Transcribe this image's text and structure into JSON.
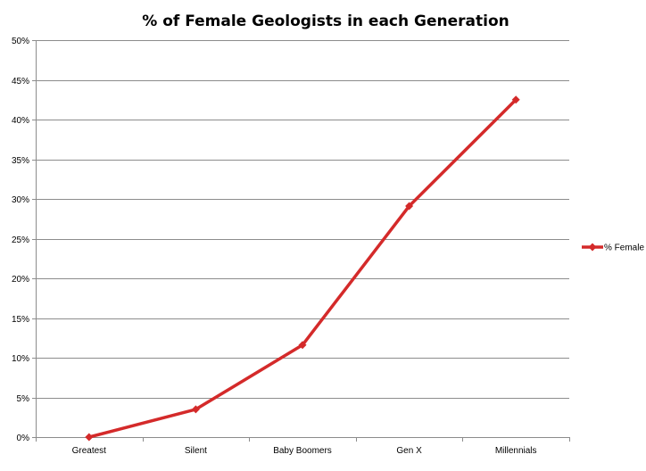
{
  "chart_data": {
    "type": "line",
    "title": "% of Female Geologists in each Generation",
    "xlabel": "",
    "ylabel": "",
    "categories": [
      "Greatest",
      "Silent",
      "Baby Boomers",
      "Gen X",
      "Millennials"
    ],
    "series": [
      {
        "name": "% Female",
        "values": [
          0,
          3.5,
          11.6,
          29.1,
          42.5
        ],
        "color": "#d42a2a"
      }
    ],
    "ylim": [
      0,
      50
    ],
    "y_ticks": [
      0,
      5,
      10,
      15,
      20,
      25,
      30,
      35,
      40,
      45,
      50
    ],
    "y_tick_suffix": "%",
    "grid": "horizontal",
    "legend_position": "right",
    "marker": "diamond"
  }
}
